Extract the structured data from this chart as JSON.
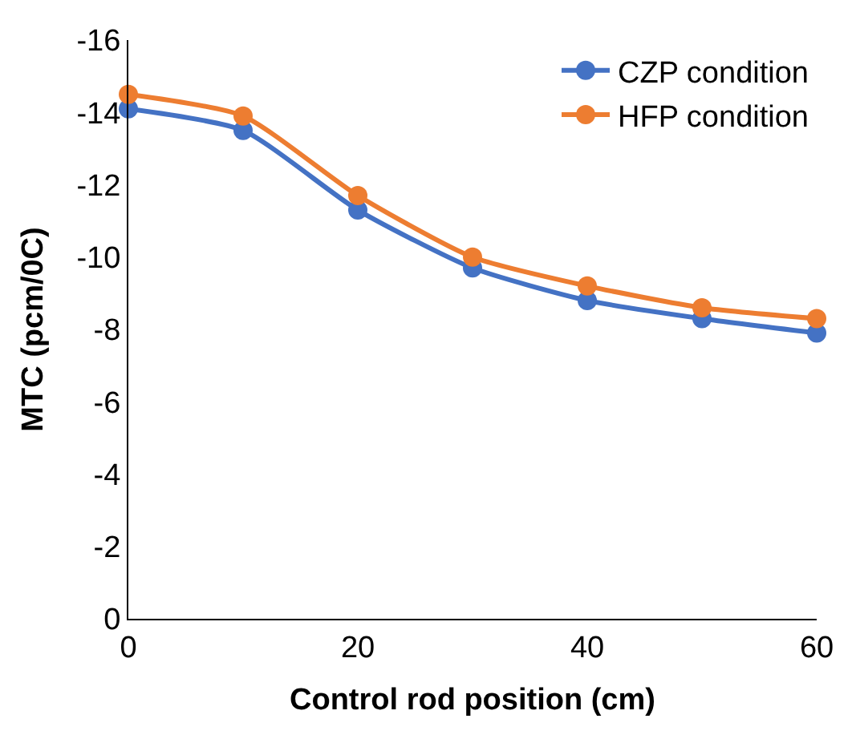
{
  "chart_data": {
    "type": "line",
    "xlabel": "Control rod position (cm)",
    "ylabel": "MTC (pcm/0C)",
    "x": [
      0,
      10,
      20,
      30,
      40,
      50,
      60
    ],
    "series": [
      {
        "name": "CZP condition",
        "color": "#4472c4",
        "values": [
          -14.1,
          -13.5,
          -11.3,
          -9.7,
          -8.8,
          -8.3,
          -7.9
        ]
      },
      {
        "name": "HFP condition",
        "color": "#ed7d31",
        "values": [
          -14.5,
          -13.9,
          -11.7,
          -10.0,
          -9.2,
          -8.6,
          -8.3
        ]
      }
    ],
    "xlim": [
      0,
      60
    ],
    "xticks": [
      0,
      20,
      40,
      60
    ],
    "ylim": [
      0,
      -16
    ],
    "yticks": [
      0,
      -2,
      -4,
      -6,
      -8,
      -10,
      -12,
      -14,
      -16
    ],
    "legend": "top right",
    "marker": "circle",
    "line_style": "solid"
  }
}
